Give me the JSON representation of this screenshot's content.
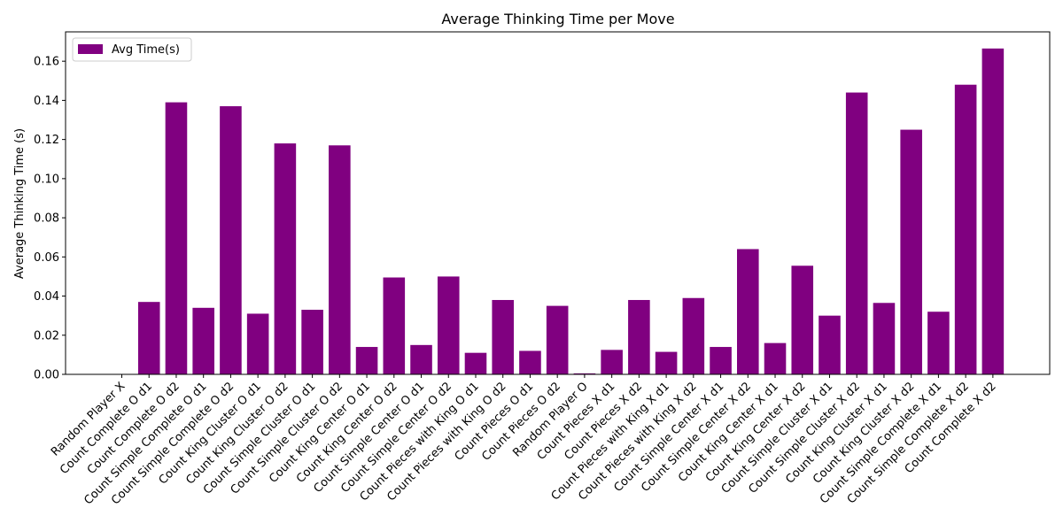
{
  "chart_data": {
    "type": "bar",
    "title": "Average Thinking Time per Move",
    "xlabel": "",
    "ylabel": "Average Thinking Time (s)",
    "ylim": [
      0,
      0.175
    ],
    "yticks": [
      "0.00",
      "0.02",
      "0.04",
      "0.06",
      "0.08",
      "0.10",
      "0.12",
      "0.14",
      "0.16"
    ],
    "grid": false,
    "legend_position": "top-left",
    "bar_color": "#800080",
    "categories": [
      "Random Player X",
      "Count Complete O d1",
      "Count Complete O d2",
      "Count Simple Complete O d1",
      "Count Simple Complete O d2",
      "Count King Cluster O d1",
      "Count King Cluster O d2",
      "Count Simple Cluster O d1",
      "Count Simple Cluster O d2",
      "Count King Center O d1",
      "Count King Center O d2",
      "Count Simple Center O d1",
      "Count Simple Center O d2",
      "Count Pieces with King O d1",
      "Count Pieces with King O d2",
      "Count Pieces O d1",
      "Count Pieces O d2",
      "Random Player O",
      "Count Pieces X d1",
      "Count Pieces X d2",
      "Count Pieces with King X d1",
      "Count Pieces with King X d2",
      "Count Simple Center X d1",
      "Count Simple Center X d2",
      "Count King Center X d1",
      "Count King Center X d2",
      "Count Simple Cluster X d1",
      "Count Simple Cluster X d2",
      "Count King Cluster X d1",
      "Count King Cluster X d2",
      "Count Simple Complete X d1",
      "Count Simple Complete X d2",
      "Count Complete X d2"
    ],
    "series": [
      {
        "name": "Avg Time(s)",
        "values": [
          0.0,
          0.037,
          0.139,
          0.034,
          0.137,
          0.031,
          0.118,
          0.033,
          0.117,
          0.014,
          0.0495,
          0.015,
          0.05,
          0.011,
          0.038,
          0.012,
          0.035,
          0.0005,
          0.0125,
          0.038,
          0.0115,
          0.039,
          0.014,
          0.064,
          0.016,
          0.0555,
          0.03,
          0.144,
          0.0365,
          0.125,
          0.032,
          0.148,
          0.1665
        ]
      }
    ]
  }
}
